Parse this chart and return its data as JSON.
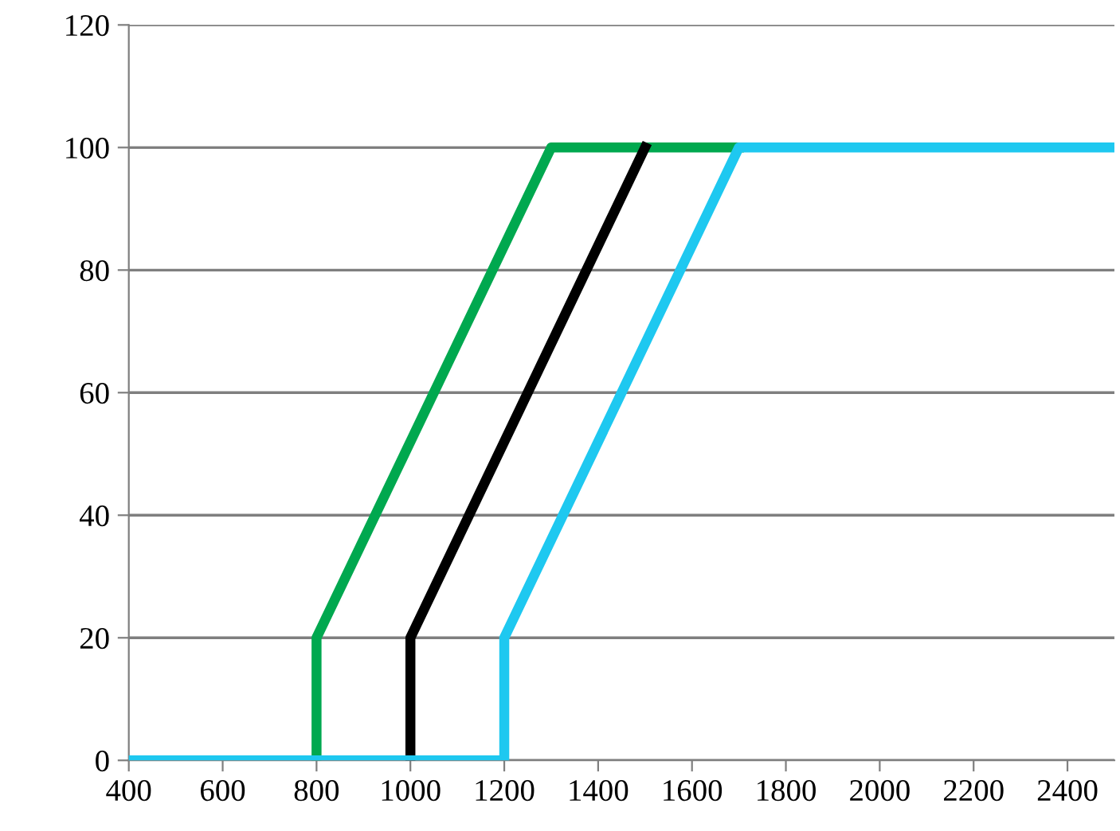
{
  "chart_data": {
    "type": "line",
    "xlim": [
      400,
      2500
    ],
    "xticks": [
      400,
      600,
      800,
      1000,
      1200,
      1400,
      1600,
      1800,
      2000,
      2200,
      2400
    ],
    "ylim": [
      0,
      120
    ],
    "yticks": [
      0,
      20,
      40,
      60,
      80,
      100,
      120
    ],
    "grid": "y",
    "marker": "none",
    "line_style": "solid",
    "series": [
      {
        "color": "#00a84f",
        "x": [
          800,
          800,
          1300,
          1700
        ],
        "values": [
          0,
          20,
          100,
          100
        ]
      },
      {
        "color": "#000000",
        "x": [
          1000,
          1000,
          1500
        ],
        "values": [
          0,
          20,
          100
        ]
      },
      {
        "color": "#1ec8f0",
        "x": [
          400,
          1200,
          1200,
          1700,
          2500
        ],
        "values": [
          0,
          0,
          20,
          100,
          100
        ]
      }
    ]
  }
}
